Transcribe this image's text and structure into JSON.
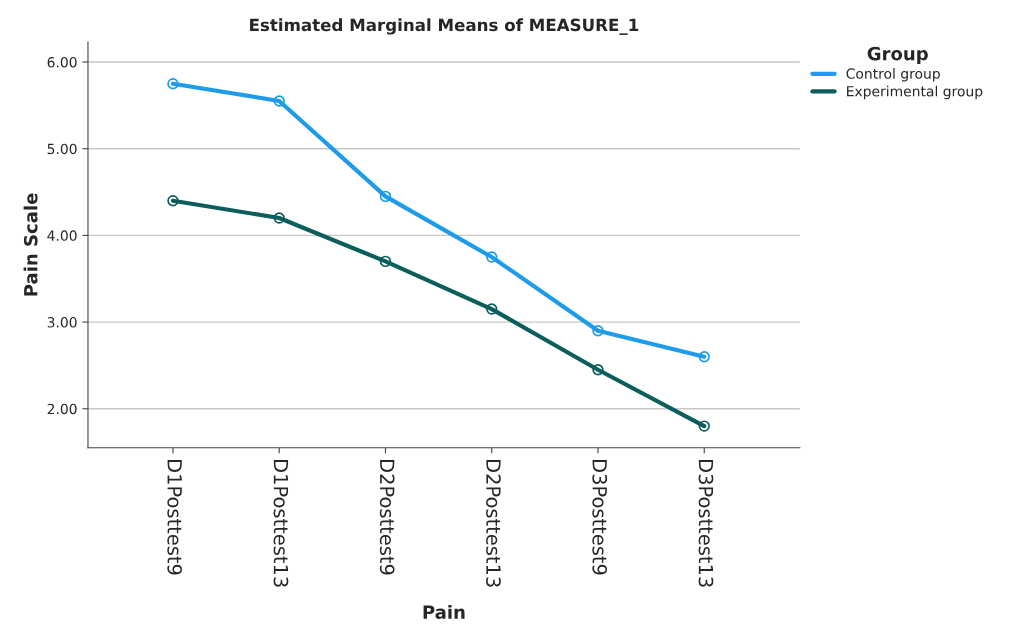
{
  "chart_data": {
    "type": "line",
    "title": "Estimated Marginal Means of MEASURE_1",
    "xlabel": "Pain",
    "ylabel": "Pain Scale",
    "legend_title": "Group",
    "categories": [
      "D1Posttest9",
      "D1Posttest13",
      "D2Posttest9",
      "D2Posttest13",
      "D3Posttest9",
      "D3Posttest13"
    ],
    "series": [
      {
        "name": "Control group",
        "color": "#1e9be9",
        "values": [
          5.75,
          5.55,
          4.45,
          3.75,
          2.9,
          2.6
        ]
      },
      {
        "name": "Experimental group",
        "color": "#0b5e5b",
        "values": [
          4.4,
          4.2,
          3.7,
          3.15,
          2.45,
          1.8
        ]
      }
    ],
    "ylim": [
      1.55,
      6.23
    ],
    "yticks": [
      {
        "value": 2,
        "label": "2.00"
      },
      {
        "value": 3,
        "label": "3.00"
      },
      {
        "value": 4,
        "label": "4.00"
      },
      {
        "value": 5,
        "label": "5.00"
      },
      {
        "value": 6,
        "label": "6.00"
      }
    ],
    "grid": "y",
    "legend": "top right",
    "marker": "circle",
    "line_style": "solid"
  }
}
